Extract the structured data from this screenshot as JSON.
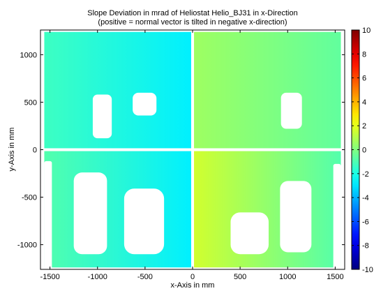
{
  "chart_data": {
    "type": "heatmap",
    "title": "Slope Deviation in mrad of Heliostat Helio_BJ31 in x-Direction",
    "subtitle": "(positive = normal vector is tilted in negative x-direction)",
    "xlabel": "x-Axis in mm",
    "ylabel": "y-Axis in mm",
    "xlim": [
      -1600,
      1600
    ],
    "ylim": [
      -1260,
      1260
    ],
    "x_ticks": [
      -1500,
      -1000,
      -500,
      0,
      500,
      1000,
      1500
    ],
    "y_ticks": [
      -1000,
      -500,
      0,
      500,
      1000
    ],
    "colorbar": {
      "min": -10,
      "max": 10,
      "ticks": [
        -10,
        -8,
        -6,
        -4,
        -2,
        0,
        2,
        4,
        6,
        8,
        10
      ],
      "colormap": "jet"
    },
    "grid": false,
    "facets": [
      {
        "name": "upper-left",
        "x": [
          -1560,
          -15
        ],
        "y": [
          15,
          1240
        ],
        "value_left": -1.3,
        "value_right": -2.8
      },
      {
        "name": "upper-right",
        "x": [
          15,
          1560
        ],
        "y": [
          15,
          1240
        ],
        "value_left": 0.6,
        "value_right": -0.6
      },
      {
        "name": "lower-left",
        "x": [
          -1560,
          -15
        ],
        "y": [
          -1240,
          -15
        ],
        "value_left": -0.9,
        "value_right": -2.8
      },
      {
        "name": "lower-right",
        "x": [
          15,
          1560
        ],
        "y": [
          -1240,
          -15
        ],
        "value_left": 1.6,
        "value_right": -0.9
      }
    ],
    "missing_regions": [
      {
        "x": [
          -1050,
          -850
        ],
        "y": [
          120,
          580
        ]
      },
      {
        "x": [
          -630,
          -380
        ],
        "y": [
          360,
          600
        ]
      },
      {
        "x": [
          930,
          1150
        ],
        "y": [
          220,
          600
        ]
      },
      {
        "x": [
          -1250,
          -900
        ],
        "y": [
          -1100,
          -240
        ]
      },
      {
        "x": [
          -720,
          -300
        ],
        "y": [
          -1100,
          -410
        ]
      },
      {
        "x": [
          920,
          1250
        ],
        "y": [
          -1080,
          -330
        ]
      },
      {
        "x": [
          400,
          800
        ],
        "y": [
          -1100,
          -660
        ]
      },
      {
        "x": [
          -1560,
          -1480
        ],
        "y": [
          -1260,
          -120
        ]
      },
      {
        "x": [
          1480,
          1560
        ],
        "y": [
          -1260,
          -150
        ]
      }
    ]
  }
}
